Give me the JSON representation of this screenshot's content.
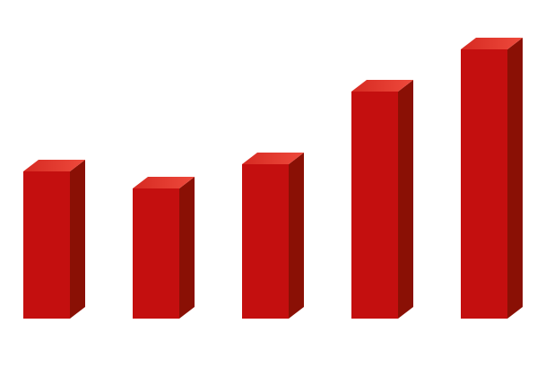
{
  "chart_data": {
    "type": "bar3d",
    "categories": [
      null,
      null,
      null,
      null,
      null
    ],
    "values": [
      164,
      145,
      172,
      253,
      300
    ],
    "color": "#c40f0f",
    "side_color": "#8a1005",
    "top_color": "#e2372c",
    "ylim": [
      0,
      300
    ]
  }
}
